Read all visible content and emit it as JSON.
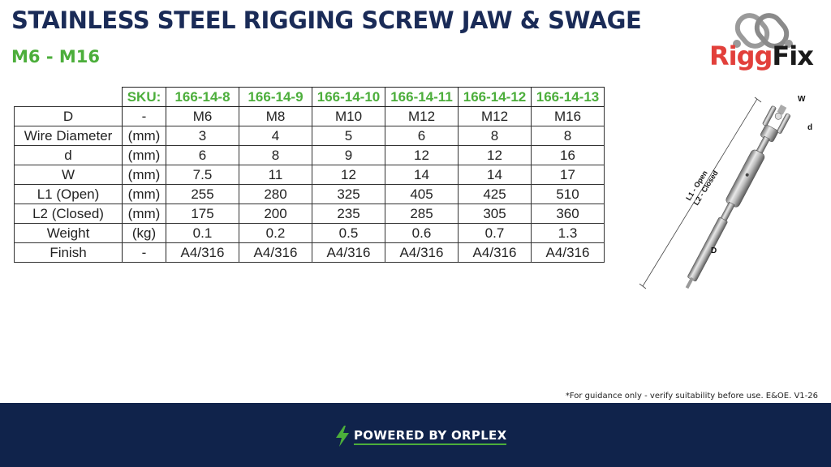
{
  "header": {
    "title": "STAINLESS STEEL RIGGING SCREW JAW & SWAGE",
    "subtitle": "M6 - M16"
  },
  "brand": {
    "logo_text_part1": "Rigg",
    "logo_text_part2": "Fix",
    "accent_red": "#e2403b",
    "accent_green": "#4cae3b",
    "navy": "#10234b"
  },
  "table": {
    "sku_label": "SKU:",
    "skus": [
      "166-14-8",
      "166-14-9",
      "166-14-10",
      "166-14-11",
      "166-14-12",
      "166-14-13"
    ],
    "rows": [
      {
        "label": "D",
        "unit": "-",
        "values": [
          "M6",
          "M8",
          "M10",
          "M12",
          "M12",
          "M16"
        ]
      },
      {
        "label": "Wire Diameter",
        "unit": "(mm)",
        "values": [
          "3",
          "4",
          "5",
          "6",
          "8",
          "8"
        ]
      },
      {
        "label": "d",
        "unit": "(mm)",
        "values": [
          "6",
          "8",
          "9",
          "12",
          "12",
          "16"
        ]
      },
      {
        "label": "W",
        "unit": "(mm)",
        "values": [
          "7.5",
          "11",
          "12",
          "14",
          "14",
          "17"
        ]
      },
      {
        "label": "L1 (Open)",
        "unit": "(mm)",
        "values": [
          "255",
          "280",
          "325",
          "405",
          "425",
          "510"
        ]
      },
      {
        "label": "L2 (Closed)",
        "unit": "(mm)",
        "values": [
          "175",
          "200",
          "235",
          "285",
          "305",
          "360"
        ]
      },
      {
        "label": "Weight",
        "unit": "(kg)",
        "values": [
          "0.1",
          "0.2",
          "0.5",
          "0.6",
          "0.7",
          "1.3"
        ]
      },
      {
        "label": "Finish",
        "unit": "-",
        "values": [
          "A4/316",
          "A4/316",
          "A4/316",
          "A4/316",
          "A4/316",
          "A4/316"
        ]
      }
    ]
  },
  "diagram": {
    "label_w": "W",
    "label_d_small": "d",
    "label_l1": "L1 - Open",
    "label_l2": "L2 - Closed",
    "label_d_big": "D"
  },
  "footer": {
    "note": "*For guidance only - verify suitability before use. E&OE.  V1-26",
    "powered_by": "POWERED BY ORPLEX"
  }
}
